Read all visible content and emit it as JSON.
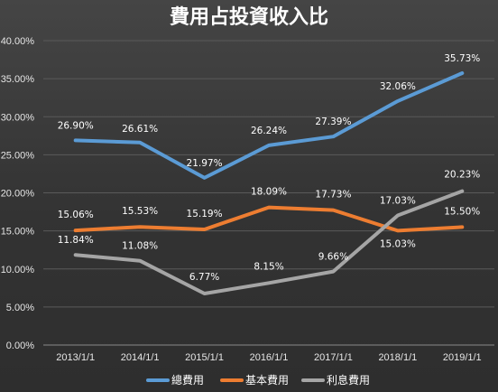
{
  "chart_data": {
    "type": "line",
    "title": "費用占投資收入比",
    "categories": [
      "2013/1/1",
      "2014/1/1",
      "2015/1/1",
      "2016/1/1",
      "2017/1/1",
      "2018/1/1",
      "2019/1/1"
    ],
    "ylim": [
      0,
      40
    ],
    "yticks": [
      0,
      5,
      10,
      15,
      20,
      25,
      30,
      35,
      40
    ],
    "ytick_labels": [
      "0.00%",
      "5.00%",
      "10.00%",
      "15.00%",
      "20.00%",
      "25.00%",
      "30.00%",
      "35.00%",
      "40.00%"
    ],
    "grid": true,
    "legend_position": "bottom",
    "series": [
      {
        "name": "總費用",
        "color": "#5b9bd5",
        "values": [
          26.9,
          26.61,
          21.97,
          26.24,
          27.39,
          32.06,
          35.73
        ],
        "labels": [
          "26.90%",
          "26.61%",
          "21.97%",
          "26.24%",
          "27.39%",
          "32.06%",
          "35.73%"
        ]
      },
      {
        "name": "基本費用",
        "color": "#ed7d31",
        "values": [
          15.06,
          15.53,
          15.19,
          18.09,
          17.73,
          15.03,
          15.5
        ],
        "labels": [
          "15.06%",
          "15.53%",
          "15.19%",
          "18.09%",
          "17.73%",
          "15.03%",
          "15.50%"
        ]
      },
      {
        "name": "利息費用",
        "color": "#a5a5a5",
        "values": [
          11.84,
          11.08,
          6.77,
          8.15,
          9.66,
          17.03,
          20.23
        ],
        "labels": [
          "11.84%",
          "11.08%",
          "6.77%",
          "8.15%",
          "9.66%",
          "17.03%",
          "20.23%"
        ]
      }
    ]
  }
}
